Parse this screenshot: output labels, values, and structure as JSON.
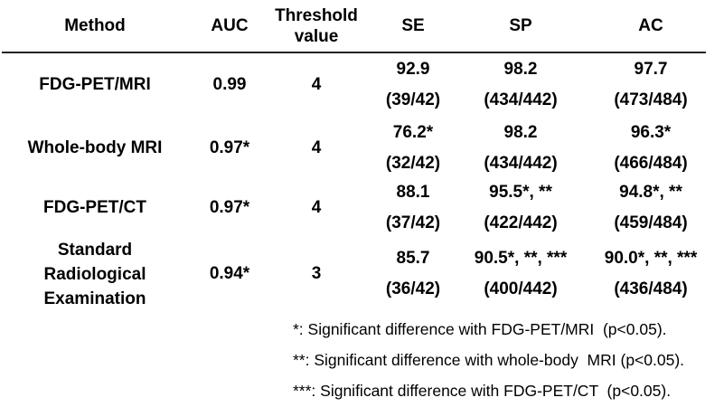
{
  "table": {
    "columns": [
      "Method",
      "AUC",
      "Threshold value",
      "SE",
      "SP",
      "AC"
    ],
    "rows": [
      {
        "method": "FDG-PET/MRI",
        "auc": "0.99",
        "threshold": "4",
        "se": {
          "value": "92.9",
          "fraction": "(39/42)"
        },
        "sp": {
          "value": "98.2",
          "fraction": "(434/442)"
        },
        "ac": {
          "value": "97.7",
          "fraction": "(473/484)"
        }
      },
      {
        "method": "Whole-body MRI",
        "auc": "0.97*",
        "threshold": "4",
        "se": {
          "value": "76.2*",
          "fraction": "(32/42)"
        },
        "sp": {
          "value": "98.2",
          "fraction": "(434/442)"
        },
        "ac": {
          "value": "96.3*",
          "fraction": "(466/484)"
        }
      },
      {
        "method": "FDG-PET/CT",
        "auc": "0.97*",
        "threshold": "4",
        "se": {
          "value": "88.1",
          "fraction": "(37/42)"
        },
        "sp": {
          "value": "95.5*, **",
          "fraction": "(422/442)"
        },
        "ac": {
          "value": "94.8*, **",
          "fraction": "(459/484)"
        }
      },
      {
        "method": "Standard Radiological Examination",
        "auc": "0.94*",
        "threshold": "3",
        "se": {
          "value": "85.7",
          "fraction": "(36/42)"
        },
        "sp": {
          "value": "90.5*, **, ***",
          "fraction": "(400/442)"
        },
        "ac": {
          "value": "90.0*, **, ***",
          "fraction": "(436/484)"
        }
      }
    ]
  },
  "footnotes": [
    "*: Significant difference with FDG-PET/MRI  (p<0.05).",
    "**: Significant difference with whole-body  MRI (p<0.05).",
    "***: Significant difference with FDG-PET/CT  (p<0.05)."
  ]
}
